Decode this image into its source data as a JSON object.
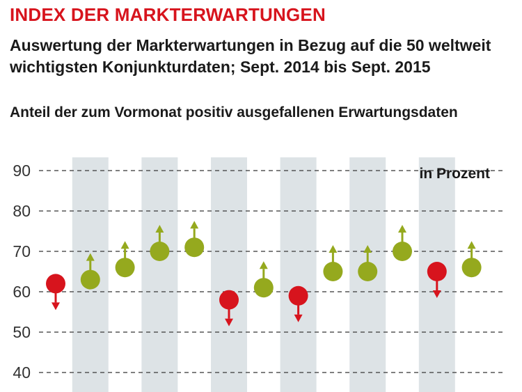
{
  "header": {
    "title": "INDEX DER MARKTERWARTUNGEN",
    "subtitle": "Auswertung der Markterwartungen in Bezug auf die 50 welt­weit wichtigsten Konjunkturdaten; Sept. 2014 bis Sept. 2015",
    "caption": "Anteil der zum Vormonat positiv ausgefallenen Erwartungsdaten"
  },
  "chart_data": {
    "type": "scatter",
    "unit_label": "in Prozent",
    "ylim": [
      40,
      90
    ],
    "yticks": [
      40,
      50,
      60,
      70,
      80,
      90
    ],
    "grid": true,
    "values": [
      62,
      63,
      66,
      70,
      71,
      58,
      61,
      59,
      65,
      65,
      70,
      65,
      66
    ],
    "direction": [
      "down",
      "up",
      "up",
      "up",
      "up",
      "down",
      "up",
      "down",
      "up",
      "up",
      "up",
      "down",
      "up"
    ],
    "colors": {
      "up": "#95a91e",
      "down": "#d7141d",
      "band": "#dde3e6",
      "grid": "#555555"
    }
  }
}
